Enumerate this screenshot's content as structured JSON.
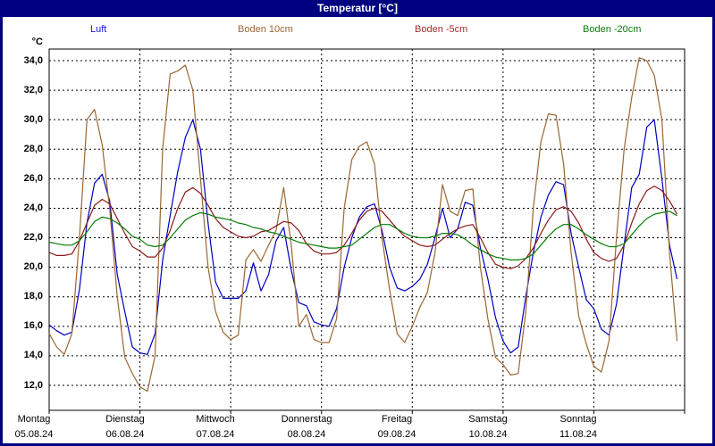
{
  "window": {
    "title": "Temperatur [°C]"
  },
  "chart_data": {
    "type": "line",
    "title": "Temperatur [°C]",
    "xlabel": "",
    "ylabel": "°C",
    "y_axis_unit": "°C",
    "ylim": [
      10.3,
      34.8
    ],
    "y_ticks": [
      34,
      32,
      30,
      28,
      26,
      24,
      22,
      20,
      18,
      16,
      14,
      12
    ],
    "y_tick_labels": [
      "34,0",
      "32,0",
      "30,0",
      "28,0",
      "26,0",
      "24,0",
      "22,0",
      "20,0",
      "18,0",
      "16,0",
      "14,0",
      "12,0"
    ],
    "grid": true,
    "legend_position": "top",
    "x_range_hours": [
      0,
      168
    ],
    "x_step_hours": 2,
    "x_start_hour": 0,
    "days": [
      {
        "weekday": "Montag",
        "date": "05.08.24"
      },
      {
        "weekday": "Dienstag",
        "date": "06.08.24"
      },
      {
        "weekday": "Mittwoch",
        "date": "07.08.24"
      },
      {
        "weekday": "Donnerstag",
        "date": "08.08.24"
      },
      {
        "weekday": "Freitag",
        "date": "09.08.24"
      },
      {
        "weekday": "Samstag",
        "date": "10.08.24"
      },
      {
        "weekday": "Sonntag",
        "date": "11.08.24"
      }
    ],
    "series": [
      {
        "name": "Luft",
        "color": "#0000c0",
        "label_color": "#1414e6",
        "values": [
          16.1,
          15.7,
          15.4,
          15.6,
          18.5,
          23.0,
          25.7,
          26.3,
          24.5,
          19.5,
          17.0,
          14.6,
          14.2,
          14.1,
          15.5,
          20.5,
          23.5,
          26.5,
          28.8,
          30.0,
          28.0,
          23.0,
          19.0,
          17.9,
          17.9,
          17.9,
          18.4,
          20.3,
          18.4,
          19.5,
          21.8,
          22.7,
          19.8,
          17.6,
          17.4,
          16.3,
          16.1,
          16.0,
          17.2,
          20.0,
          22.0,
          23.4,
          24.1,
          24.3,
          22.5,
          20.0,
          18.6,
          18.4,
          18.7,
          19.2,
          20.2,
          22.0,
          24.0,
          22.0,
          22.6,
          24.4,
          24.2,
          21.3,
          19.2,
          16.6,
          15.0,
          14.2,
          14.6,
          18.0,
          21.0,
          23.4,
          24.9,
          25.8,
          25.6,
          22.3,
          20.0,
          17.8,
          17.2,
          15.8,
          15.4,
          17.5,
          21.5,
          25.4,
          26.3,
          29.5,
          30.0,
          26.0,
          21.5,
          19.2
        ]
      },
      {
        "name": "Boden 10cm",
        "color": "#9a6733",
        "label_color": "#9a6733",
        "values": [
          15.5,
          14.6,
          14.1,
          15.5,
          22.0,
          30.0,
          30.7,
          28.3,
          24.0,
          18.0,
          13.9,
          12.8,
          11.9,
          11.6,
          14.0,
          28.0,
          33.1,
          33.3,
          33.7,
          32.0,
          26.0,
          20.0,
          17.0,
          15.6,
          15.1,
          15.4,
          20.5,
          21.2,
          20.4,
          21.5,
          22.5,
          25.4,
          21.5,
          16.0,
          16.8,
          15.1,
          14.9,
          14.9,
          16.5,
          24.0,
          27.3,
          28.2,
          28.5,
          27.0,
          22.0,
          18.5,
          15.5,
          14.9,
          16.0,
          17.3,
          18.3,
          21.0,
          25.6,
          23.8,
          23.5,
          25.2,
          25.3,
          20.0,
          16.5,
          13.9,
          13.4,
          12.7,
          12.8,
          17.0,
          24.0,
          28.5,
          30.4,
          30.3,
          27.0,
          21.0,
          16.7,
          14.8,
          13.3,
          12.9,
          15.0,
          22.0,
          28.0,
          31.5,
          34.2,
          34.0,
          33.0,
          30.0,
          21.0,
          15.0
        ]
      },
      {
        "name": "Boden -5cm",
        "color": "#8b1a1a",
        "label_color": "#a52a2a",
        "values": [
          21.0,
          20.8,
          20.8,
          20.9,
          21.8,
          23.0,
          24.2,
          24.6,
          24.3,
          23.3,
          22.3,
          21.4,
          21.1,
          20.7,
          20.7,
          21.3,
          22.5,
          24.0,
          25.1,
          25.4,
          25.0,
          24.2,
          23.3,
          22.7,
          22.4,
          22.1,
          22.0,
          22.1,
          22.4,
          22.5,
          22.8,
          23.1,
          23.0,
          22.5,
          21.6,
          21.1,
          20.9,
          20.9,
          21.0,
          21.5,
          22.3,
          23.2,
          23.8,
          24.0,
          23.8,
          23.2,
          22.6,
          22.1,
          21.8,
          21.5,
          21.4,
          21.5,
          21.9,
          22.3,
          22.6,
          22.8,
          22.9,
          22.0,
          21.0,
          20.2,
          20.0,
          19.9,
          20.1,
          20.6,
          21.3,
          22.3,
          23.2,
          23.9,
          24.1,
          23.8,
          23.0,
          21.9,
          21.0,
          20.6,
          20.4,
          20.6,
          21.5,
          23.0,
          24.3,
          25.2,
          25.5,
          25.2,
          24.5,
          23.6
        ]
      },
      {
        "name": "Boden -20cm",
        "color": "#0a7d0a",
        "label_color": "#0a7d0a",
        "values": [
          21.7,
          21.6,
          21.5,
          21.5,
          21.8,
          22.4,
          23.1,
          23.4,
          23.3,
          23.0,
          22.6,
          22.1,
          21.9,
          21.5,
          21.4,
          21.5,
          22.0,
          22.6,
          23.2,
          23.5,
          23.7,
          23.6,
          23.4,
          23.3,
          23.2,
          23.0,
          22.9,
          22.7,
          22.6,
          22.4,
          22.3,
          22.1,
          21.9,
          21.7,
          21.6,
          21.5,
          21.4,
          21.3,
          21.3,
          21.4,
          21.5,
          21.9,
          22.3,
          22.7,
          22.9,
          22.9,
          22.6,
          22.3,
          22.1,
          22.0,
          22.0,
          22.1,
          22.3,
          22.3,
          22.2,
          21.9,
          21.5,
          21.2,
          20.9,
          20.7,
          20.6,
          20.5,
          20.5,
          20.6,
          20.9,
          21.5,
          22.1,
          22.6,
          22.9,
          22.9,
          22.6,
          22.2,
          21.9,
          21.6,
          21.4,
          21.4,
          21.6,
          22.2,
          22.8,
          23.3,
          23.6,
          23.7,
          23.8,
          23.5
        ]
      }
    ]
  }
}
